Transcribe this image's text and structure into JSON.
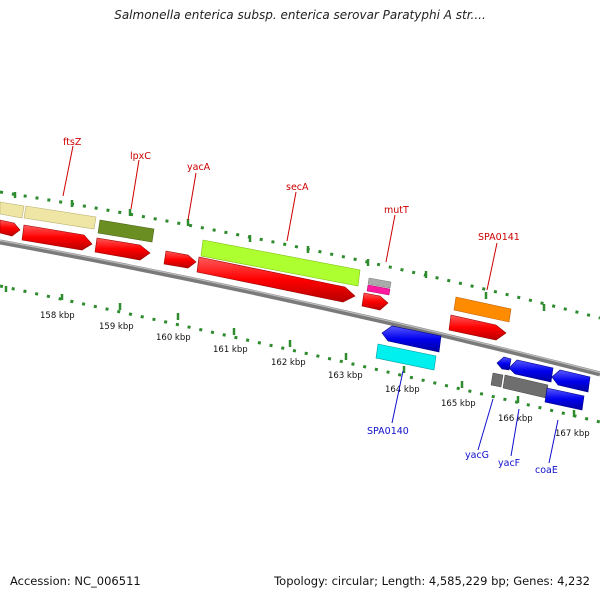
{
  "title": "Salmonella enterica subsp. enterica serovar Paratyphi A str....",
  "footer": {
    "accession": "Accession: NC_006511",
    "summary": "Topology: circular; Length: 4,585,229 bp; Genes: 4,232"
  },
  "colors": {
    "red_label": "#cc0000",
    "blue_label": "#1010cc",
    "tick_green": "#2e8b2e",
    "backbone": "#808080"
  },
  "scale_labels": [
    "158 kbp",
    "159 kbp",
    "160 kbp",
    "161 kbp",
    "162 kbp",
    "163 kbp",
    "164 kbp",
    "165 kbp",
    "166 kbp",
    "167 kbp"
  ],
  "forward_gene_labels": [
    "ftsZ",
    "lpxC",
    "yacA",
    "secA",
    "mutT",
    "SPA0141"
  ],
  "reverse_gene_labels": [
    "SPA0140",
    "yacG",
    "yacF",
    "coaE"
  ]
}
